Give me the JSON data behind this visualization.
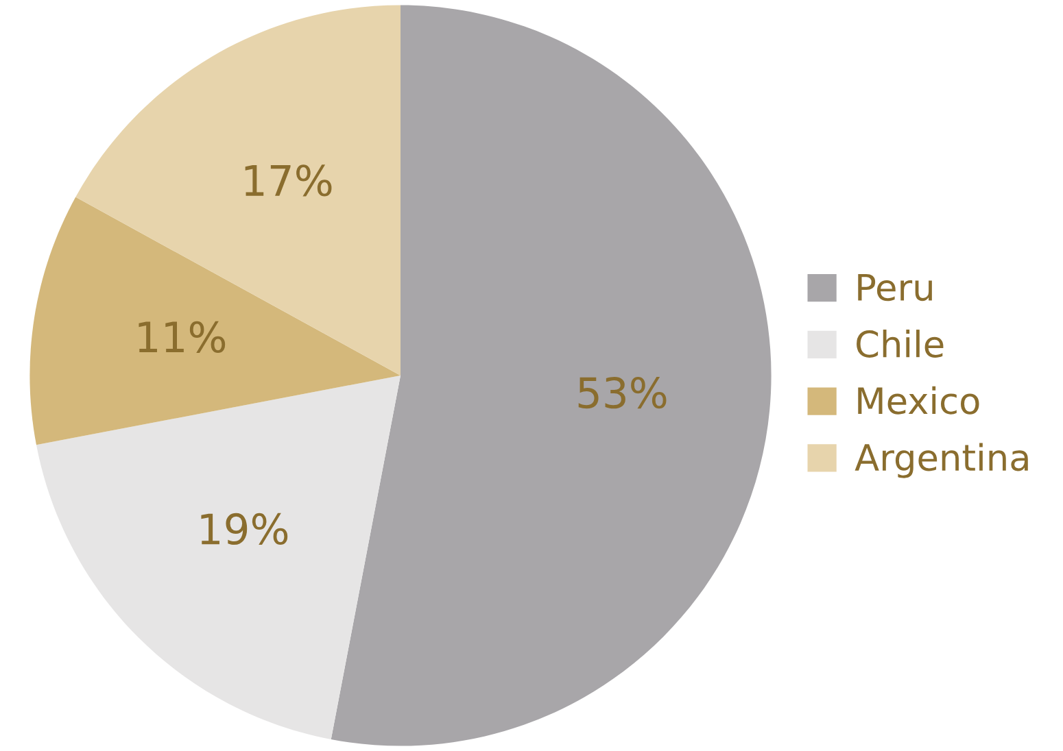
{
  "chart_data": {
    "type": "pie",
    "categories": [
      "Peru",
      "Chile",
      "Mexico",
      "Argentina"
    ],
    "values": [
      53,
      19,
      11,
      17
    ],
    "colors": [
      "#a8a6a9",
      "#e6e5e5",
      "#d4b87b",
      "#e7d4ac"
    ],
    "value_labels": [
      "53%",
      "19%",
      "11%",
      "17%"
    ],
    "legend": "right"
  }
}
